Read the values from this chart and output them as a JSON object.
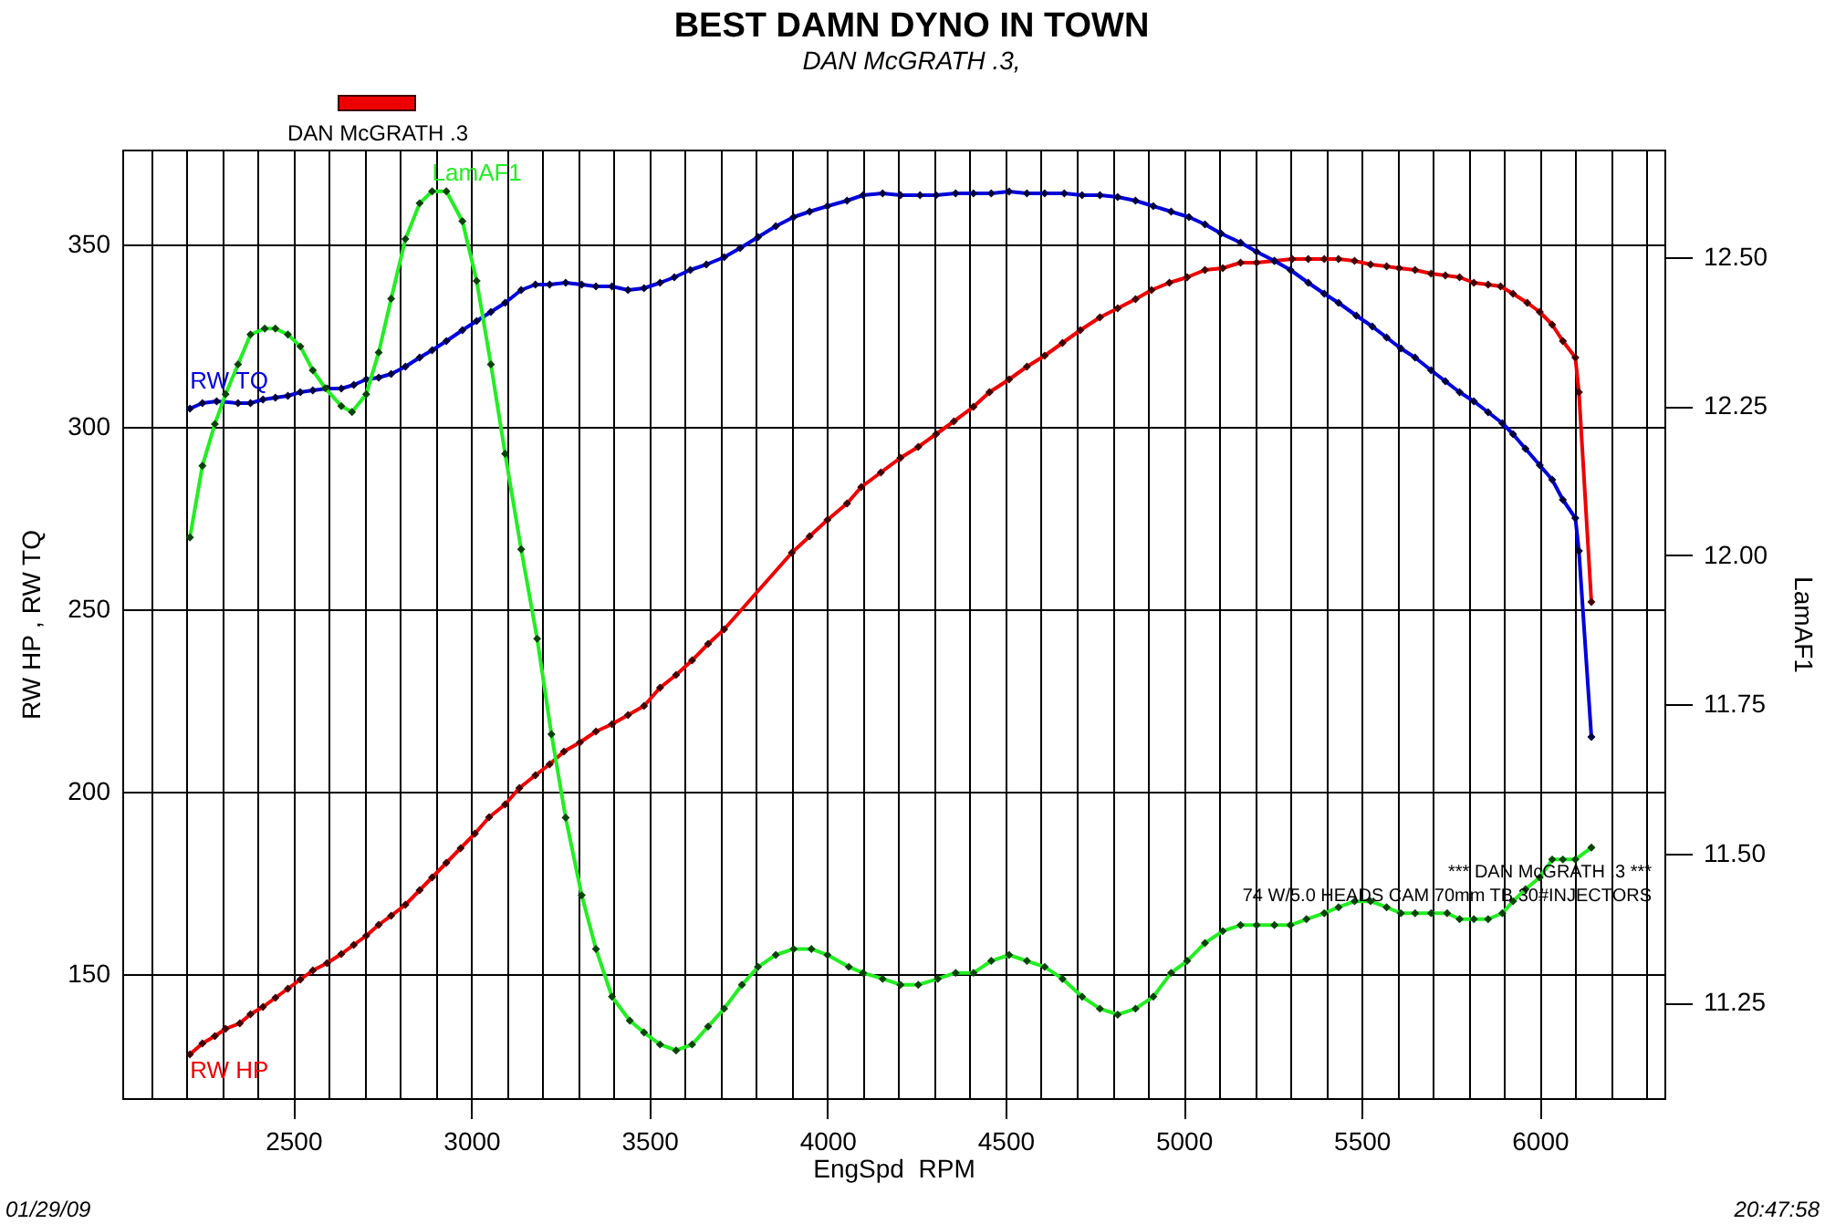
{
  "chart_data": {
    "type": "line",
    "title": "BEST DAMN DYNO IN TOWN",
    "subtitle": "DAN McGRATH .3,",
    "xlabel": "EngSpd  RPM",
    "ylabel": "RW HP , RW TQ",
    "y2label": "LamAF1",
    "annotations": [
      "DAN McGRATH .3",
      "*** DAN McGRATH .3 ***",
      "74 W/5.0 HEADS CAM 70mm TB 30#INJECTORS",
      "01/29/09",
      "20:47:58"
    ],
    "xlim": [
      2020,
      6350
    ],
    "xticks": [
      {
        "value": 2100,
        "label": null
      },
      {
        "value": 2200,
        "label": null
      },
      {
        "value": 2300,
        "label": null
      },
      {
        "value": 2400,
        "label": null
      },
      2500,
      {
        "value": 2600,
        "label": null
      },
      {
        "value": 2700,
        "label": null
      },
      {
        "value": 2800,
        "label": null
      },
      {
        "value": 2900,
        "label": null
      },
      3000,
      {
        "value": 3100,
        "label": null
      },
      {
        "value": 3200,
        "label": null
      },
      {
        "value": 3300,
        "label": null
      },
      {
        "value": 3400,
        "label": null
      },
      3500,
      {
        "value": 3600,
        "label": null
      },
      {
        "value": 3700,
        "label": null
      },
      {
        "value": 3800,
        "label": null
      },
      {
        "value": 3900,
        "label": null
      },
      4000,
      {
        "value": 4100,
        "label": null
      },
      {
        "value": 4200,
        "label": null
      },
      {
        "value": 4300,
        "label": null
      },
      {
        "value": 4400,
        "label": null
      },
      4500,
      {
        "value": 4600,
        "label": null
      },
      {
        "value": 4700,
        "label": null
      },
      {
        "value": 4800,
        "label": null
      },
      {
        "value": 4900,
        "label": null
      },
      5000,
      {
        "value": 5100,
        "label": null
      },
      {
        "value": 5200,
        "label": null
      },
      {
        "value": 5300,
        "label": null
      },
      {
        "value": 5400,
        "label": null
      },
      5500,
      {
        "value": 5600,
        "label": null
      },
      {
        "value": 5700,
        "label": null
      },
      {
        "value": 5800,
        "label": null
      },
      {
        "value": 5900,
        "label": null
      },
      6000,
      {
        "value": 6100,
        "label": null
      },
      {
        "value": 6200,
        "label": null
      },
      {
        "value": 6300,
        "label": null
      }
    ],
    "ylim": [
      116,
      376
    ],
    "yticks": [
      150,
      200,
      250,
      300,
      350
    ],
    "y2lim": [
      11.09,
      12.68
    ],
    "y2ticks": [
      11.25,
      {
        "value": 11.5,
        "label": "11.50"
      },
      11.75,
      {
        "value": 12,
        "label": "12.00"
      },
      12.25,
      {
        "value": 12.5,
        "label": "12.50"
      }
    ],
    "grid": true,
    "marker": "diamond",
    "line_style": "solid",
    "series": [
      {
        "name": "RW HP",
        "color": "#ee0000",
        "x": [
          2210,
          2245,
          2280,
          2310,
          2350,
          2380,
          2415,
          2450,
          2485,
          2520,
          2555,
          2595,
          2635,
          2670,
          2705,
          2740,
          2775,
          2815,
          2855,
          2890,
          2930,
          2970,
          3010,
          3050,
          3095,
          3135,
          3180,
          3220,
          3260,
          3305,
          3350,
          3395,
          3440,
          3485,
          3530,
          3575,
          3620,
          3665,
          3710,
          3900,
          3950,
          4000,
          4055,
          4095,
          4150,
          4205,
          4255,
          4305,
          4355,
          4410,
          4455,
          4510,
          4560,
          4610,
          4660,
          4710,
          4765,
          4815,
          4865,
          4910,
          4960,
          5010,
          5060,
          5110,
          5160,
          5205,
          5255,
          5305,
          5350,
          5395,
          5435,
          5480,
          5525,
          5570,
          5605,
          5650,
          5695,
          5735,
          5775,
          5815,
          5855,
          5890,
          5925,
          5965,
          6000,
          6035,
          6065,
          6100,
          6110,
          6145
        ],
        "values": [
          128,
          131,
          133,
          135,
          136.5,
          139,
          141,
          143.5,
          146,
          148.5,
          151,
          153,
          155.5,
          158,
          160.5,
          163.5,
          166,
          169,
          173,
          176.5,
          180.5,
          184.5,
          188.5,
          193,
          196.5,
          201,
          204.5,
          207.5,
          211,
          213.5,
          216.5,
          218.5,
          221,
          223.5,
          228.5,
          232,
          236,
          240.5,
          244.5,
          265.5,
          270,
          274.5,
          279,
          283.5,
          287.5,
          291.5,
          294.5,
          298,
          301.5,
          305.5,
          309.5,
          313,
          316.5,
          319.5,
          323,
          326.5,
          330,
          332.5,
          335,
          337.5,
          339.5,
          341,
          343,
          343.5,
          345,
          345,
          345.5,
          346,
          346,
          346,
          346,
          345.5,
          344.5,
          344,
          343.5,
          343,
          342,
          341.5,
          341,
          339.5,
          339,
          338.5,
          336.5,
          334,
          331.5,
          328,
          323.5,
          319,
          309.5,
          252
        ]
      },
      {
        "name": "RW TQ",
        "color": "#0000dd",
        "x": [
          2210,
          2245,
          2285,
          2345,
          2380,
          2415,
          2450,
          2485,
          2520,
          2555,
          2595,
          2635,
          2670,
          2705,
          2740,
          2775,
          2815,
          2855,
          2890,
          2930,
          2975,
          3015,
          3055,
          3095,
          3140,
          3180,
          3220,
          3265,
          3310,
          3350,
          3395,
          3440,
          3485,
          3530,
          3570,
          3615,
          3660,
          3710,
          3755,
          3805,
          3855,
          3905,
          3950,
          4000,
          4055,
          4100,
          4155,
          4205,
          4260,
          4305,
          4360,
          4410,
          4460,
          4510,
          4560,
          4610,
          4665,
          4715,
          4765,
          4815,
          4865,
          4915,
          4965,
          5015,
          5060,
          5105,
          5160,
          5205,
          5255,
          5300,
          5350,
          5395,
          5435,
          5485,
          5530,
          5570,
          5610,
          5650,
          5695,
          5735,
          5775,
          5815,
          5855,
          5895,
          5925,
          5960,
          6000,
          6035,
          6065,
          6100,
          6110,
          6145
        ],
        "values": [
          305,
          306.5,
          307,
          306.5,
          306.5,
          307.5,
          308,
          308.5,
          309.5,
          310,
          310.5,
          310.5,
          311.5,
          313,
          313.5,
          314.5,
          316.5,
          319,
          321,
          323.5,
          326.5,
          329,
          331.5,
          334,
          337.5,
          339,
          339,
          339.5,
          339,
          338.5,
          338.5,
          337.5,
          338,
          339.5,
          341,
          343,
          344.5,
          346.5,
          349,
          352,
          355,
          357.5,
          359,
          360.5,
          362,
          363.5,
          364,
          363.5,
          363.5,
          363.5,
          364,
          364,
          364,
          364.5,
          364,
          364,
          364,
          363.5,
          363.5,
          363,
          362,
          360.5,
          359,
          357.5,
          355.5,
          353,
          350.5,
          348,
          345.5,
          343,
          339.5,
          336.5,
          334,
          330.5,
          327.5,
          324.5,
          321.5,
          319,
          315.5,
          312.5,
          309.5,
          307,
          304,
          301,
          298,
          294,
          289.5,
          285.5,
          280,
          275,
          266,
          215
        ]
      },
      {
        "name": "LamAF1",
        "color": "#22ee22",
        "axis": "y2",
        "x": [
          2210,
          2245,
          2280,
          2310,
          2345,
          2380,
          2420,
          2450,
          2485,
          2520,
          2555,
          2590,
          2635,
          2665,
          2705,
          2740,
          2775,
          2815,
          2855,
          2890,
          2930,
          2975,
          3015,
          3055,
          3095,
          3140,
          3185,
          3225,
          3265,
          3310,
          3350,
          3395,
          3445,
          3485,
          3530,
          3575,
          3620,
          3665,
          3710,
          3760,
          3805,
          3855,
          3905,
          3955,
          4000,
          4060,
          4100,
          4155,
          4205,
          4255,
          4310,
          4360,
          4410,
          4460,
          4510,
          4560,
          4610,
          4660,
          4715,
          4765,
          4815,
          4865,
          4915,
          4965,
          5010,
          5060,
          5110,
          5160,
          5205,
          5255,
          5300,
          5345,
          5395,
          5435,
          5480,
          5525,
          5570,
          5610,
          5650,
          5695,
          5740,
          5775,
          5815,
          5855,
          5895,
          5925,
          5960,
          6000,
          6035,
          6065,
          6100,
          6145
        ],
        "values": [
          12.03,
          12.15,
          12.22,
          12.27,
          12.32,
          12.37,
          12.38,
          12.38,
          12.37,
          12.35,
          12.31,
          12.28,
          12.25,
          12.24,
          12.27,
          12.34,
          12.43,
          12.53,
          12.59,
          12.61,
          12.61,
          12.56,
          12.46,
          12.32,
          12.17,
          12.01,
          11.86,
          11.7,
          11.56,
          11.43,
          11.34,
          11.26,
          11.22,
          11.2,
          11.18,
          11.17,
          11.18,
          11.21,
          11.24,
          11.28,
          11.31,
          11.33,
          11.34,
          11.34,
          11.33,
          11.31,
          11.3,
          11.29,
          11.28,
          11.28,
          11.29,
          11.3,
          11.3,
          11.32,
          11.33,
          11.32,
          11.31,
          11.29,
          11.26,
          11.24,
          11.23,
          11.24,
          11.26,
          11.3,
          11.32,
          11.35,
          11.37,
          11.38,
          11.38,
          11.38,
          11.38,
          11.39,
          11.4,
          11.41,
          11.42,
          11.42,
          11.41,
          11.4,
          11.4,
          11.4,
          11.4,
          11.39,
          11.39,
          11.39,
          11.4,
          11.42,
          11.44,
          11.46,
          11.49,
          11.49,
          11.49,
          11.51
        ]
      }
    ]
  }
}
